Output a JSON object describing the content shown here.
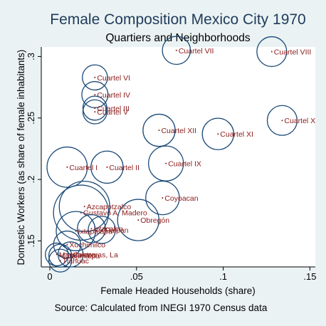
{
  "chart_data": {
    "type": "scatter",
    "title": "Female Composition Mexico City 1970",
    "subtitle": "Quartiers and Neighborhoods",
    "xlabel": "Female Headed Households (share)",
    "ylabel": "Domestic Workers (as share of female inhabitants)",
    "note": "Source: Calculated from INEGI 1970 Census data",
    "xlim": [
      -0.005,
      0.152
    ],
    "ylim": [
      0.127,
      0.312
    ],
    "xticks": [
      {
        "value": 0,
        "label": "0"
      },
      {
        "value": 0.05,
        "label": ".05"
      },
      {
        "value": 0.1,
        "label": ".1"
      },
      {
        "value": 0.15,
        "label": ".15"
      }
    ],
    "yticks": [
      {
        "value": 0.15,
        "label": ".15"
      },
      {
        "value": 0.2,
        "label": ".2"
      },
      {
        "value": 0.25,
        "label": ".25"
      },
      {
        "value": 0.3,
        "label": ".3"
      }
    ],
    "grid": false,
    "bubble_size_legend": false,
    "points": [
      {
        "label": "Cuartel VII",
        "x": 0.073,
        "y": 0.305,
        "size": 0.5
      },
      {
        "label": "Cuartel VIII",
        "x": 0.128,
        "y": 0.304,
        "size": 0.6
      },
      {
        "label": "Cuartel VI",
        "x": 0.026,
        "y": 0.283,
        "size": 0.35
      },
      {
        "label": "Cuartel IV",
        "x": 0.026,
        "y": 0.269,
        "size": 0.4
      },
      {
        "label": "Cuartel III",
        "x": 0.026,
        "y": 0.258,
        "size": 0.3
      },
      {
        "label": "Cuartel V",
        "x": 0.026,
        "y": 0.255,
        "size": 0.3
      },
      {
        "label": "Cuartel X",
        "x": 0.134,
        "y": 0.248,
        "size": 0.6
      },
      {
        "label": "Cuartel XII",
        "x": 0.063,
        "y": 0.24,
        "size": 0.75
      },
      {
        "label": "Cuartel XI",
        "x": 0.097,
        "y": 0.237,
        "size": 0.7
      },
      {
        "label": "Cuartel IX",
        "x": 0.067,
        "y": 0.213,
        "size": 0.95
      },
      {
        "label": "Cuartel I",
        "x": 0.01,
        "y": 0.21,
        "size": 1.4
      },
      {
        "label": "Cuartel II",
        "x": 0.033,
        "y": 0.21,
        "size": 0.75
      },
      {
        "label": "Coyoacan",
        "x": 0.065,
        "y": 0.185,
        "size": 0.85
      },
      {
        "label": "Azcapotzalco",
        "x": 0.02,
        "y": 0.178,
        "size": 2.5
      },
      {
        "label": "Gustavo A. Madero",
        "x": 0.018,
        "y": 0.173,
        "size": 3.1
      },
      {
        "label": "Obregón",
        "x": 0.051,
        "y": 0.167,
        "size": 1.5
      },
      {
        "label": "Iztacalco",
        "x": 0.024,
        "y": 0.16,
        "size": 0.5
      },
      {
        "label": "Tlalpan",
        "x": 0.03,
        "y": 0.159,
        "size": 0.45
      },
      {
        "label": "Ixtapalapa",
        "x": 0.015,
        "y": 0.158,
        "size": 1.3
      },
      {
        "label": "Xochimilco",
        "x": 0.01,
        "y": 0.147,
        "size": 0.45
      },
      {
        "label": "Magdalena",
        "x": 0.004,
        "y": 0.139,
        "size": 0.25
      },
      {
        "label": "Cuajimalpa",
        "x": 0.006,
        "y": 0.138,
        "size": 0.25
      },
      {
        "label": "Contreras, La",
        "x": 0.012,
        "y": 0.139,
        "size": 0.35
      },
      {
        "label": "Tlahuac",
        "x": 0.006,
        "y": 0.134,
        "size": 0.25
      }
    ]
  }
}
